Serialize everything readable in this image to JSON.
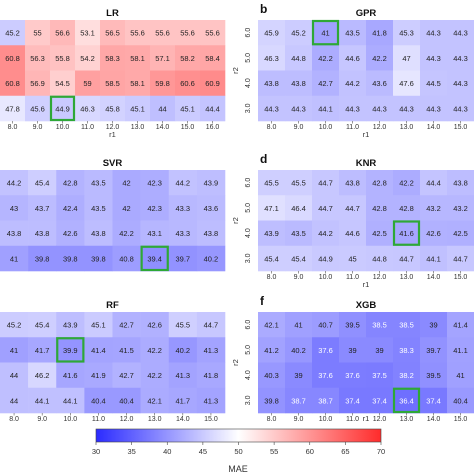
{
  "colorbar": {
    "label": "MAE",
    "min": 30,
    "max": 70,
    "ticks": [
      "30",
      "35",
      "40",
      "45",
      "50",
      "55",
      "60",
      "65",
      "70"
    ],
    "low_color": "#2b2bff",
    "mid_color": "#ffffff",
    "high_color": "#ff2b2b"
  },
  "highlight_color": "#2ea836",
  "chart_data": [
    {
      "type": "heatmap",
      "panel_letter": "",
      "title": "LR",
      "xlabel": "r1",
      "ylabel": "",
      "x_ticks": [
        "8.0",
        "9.0",
        "10.0",
        "11.0",
        "12.0",
        "13.0",
        "14.0",
        "15.0",
        "16.0"
      ],
      "y_ticks": [],
      "values": [
        [
          45.2,
          55,
          56.6,
          53.1,
          56.5,
          55.6,
          55.6,
          55.6,
          55.6
        ],
        [
          60.8,
          56.3,
          55.8,
          54.2,
          58.3,
          58.1,
          57.1,
          58.2,
          58.4
        ],
        [
          60.8,
          56.9,
          54.5,
          59.0,
          58.5,
          58.1,
          59.8,
          60.6,
          60.9
        ],
        [
          47.8,
          45.6,
          44.9,
          46.3,
          45.8,
          45.1,
          44.0,
          45.1,
          44.4
        ]
      ],
      "highlight": [
        3,
        2
      ]
    },
    {
      "type": "heatmap",
      "panel_letter": "b",
      "title": "GPR",
      "xlabel": "r1",
      "ylabel": "r2",
      "x_ticks": [
        "8.0",
        "9.0",
        "10.0",
        "11.0",
        "12.0",
        "13.0",
        "14.0",
        "15.0"
      ],
      "y_ticks": [
        "6.0",
        "5.0",
        "4.0",
        "3.0"
      ],
      "values": [
        [
          45.9,
          45.2,
          41,
          43.5,
          41.8,
          45.3,
          44.3,
          44.3
        ],
        [
          46.3,
          44.8,
          42.2,
          44.6,
          42.2,
          47,
          44.3,
          44.3
        ],
        [
          43.8,
          43.8,
          42.7,
          44.2,
          43.6,
          47.6,
          44.5,
          44.3
        ],
        [
          44.3,
          44.3,
          44.1,
          44.3,
          44.3,
          44.3,
          44.3,
          44.3
        ]
      ],
      "highlight": [
        0,
        2
      ]
    },
    {
      "type": "heatmap",
      "panel_letter": "",
      "title": "SVR",
      "xlabel": "",
      "ylabel": "",
      "x_ticks": [],
      "y_ticks": [],
      "values": [
        [
          44.2,
          45.4,
          42.8,
          43.5,
          42,
          42.3,
          44.2,
          43.9
        ],
        [
          43,
          43.7,
          42.4,
          43.5,
          42,
          42.3,
          43.3,
          43.6
        ],
        [
          43.8,
          43.8,
          42.6,
          43.8,
          42.2,
          43.1,
          43.3,
          43.8
        ],
        [
          41,
          39.8,
          39.8,
          39.8,
          40.8,
          39.4,
          39.7,
          40.2
        ]
      ],
      "highlight": [
        3,
        5
      ]
    },
    {
      "type": "heatmap",
      "panel_letter": "d",
      "title": "KNR",
      "xlabel": "r1",
      "ylabel": "r2",
      "x_ticks": [
        "8.0",
        "9.0",
        "10.0",
        "11.0",
        "12.0",
        "13.0",
        "14.0",
        "15.0"
      ],
      "y_ticks": [
        "6.0",
        "5.0",
        "4.0",
        "3.0"
      ],
      "values": [
        [
          45.5,
          45.5,
          44.7,
          43.8,
          42.8,
          42.2,
          44.4,
          43.8
        ],
        [
          47.1,
          46.4,
          44.7,
          44.7,
          42.8,
          42.8,
          43.2,
          43.2
        ],
        [
          43.9,
          43.5,
          44.2,
          44.6,
          42.5,
          41.6,
          42.6,
          42.5
        ],
        [
          45.4,
          45.4,
          44.9,
          45,
          44.8,
          44.7,
          44.1,
          44.7
        ]
      ],
      "highlight": [
        2,
        5
      ]
    },
    {
      "type": "heatmap",
      "panel_letter": "",
      "title": "RF",
      "xlabel": "r1",
      "ylabel": "",
      "x_ticks": [
        "8.0",
        "9.0",
        "10.0",
        "11.0",
        "12.0",
        "13.0",
        "14.0",
        "15.0"
      ],
      "y_ticks": [],
      "values": [
        [
          45.2,
          45.4,
          43.9,
          45.1,
          42.7,
          42.6,
          45.5,
          44.7
        ],
        [
          41,
          41.7,
          39.9,
          41.4,
          41.5,
          42.2,
          40.2,
          41.3
        ],
        [
          44.0,
          46.2,
          41.6,
          41.9,
          42.7,
          42.2,
          41.3,
          41.8
        ],
        [
          44.0,
          44.1,
          44.1,
          40.4,
          40.4,
          42.1,
          41.7,
          41.3
        ]
      ],
      "highlight": [
        1,
        2
      ]
    },
    {
      "type": "heatmap",
      "panel_letter": "f",
      "title": "XGB",
      "xlabel": "r1",
      "ylabel": "r2",
      "x_ticks": [
        "8.0",
        "9.0",
        "10.0",
        "11.0",
        "12.0",
        "13.0",
        "14.0",
        "15.0"
      ],
      "y_ticks": [
        "6.0",
        "5.0",
        "4.0",
        "3.0"
      ],
      "values": [
        [
          42.1,
          41.0,
          40.7,
          39.5,
          38.5,
          38.5,
          39,
          41.4
        ],
        [
          41.2,
          40.2,
          37.6,
          39.0,
          39.0,
          38.3,
          39.7,
          41.1
        ],
        [
          40.3,
          39.0,
          37.6,
          37.6,
          37.5,
          38.2,
          39.5,
          41.0
        ],
        [
          39.8,
          38.7,
          38.7,
          37.4,
          37.4,
          36.4,
          37.4,
          40.4
        ]
      ],
      "highlight": [
        3,
        5
      ]
    }
  ]
}
